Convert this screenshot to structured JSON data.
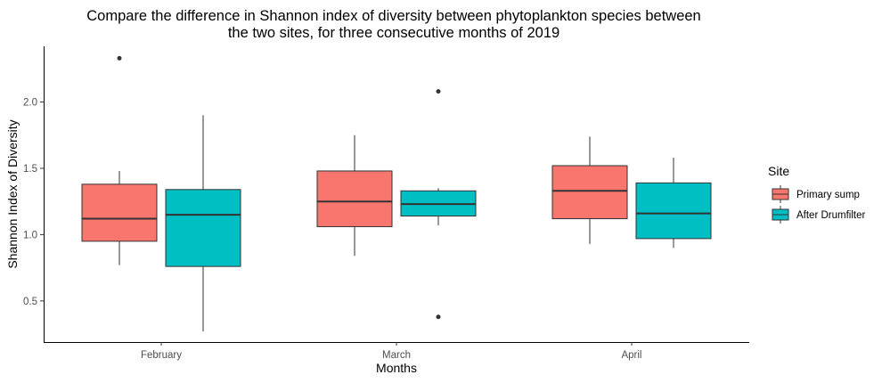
{
  "chart_data": {
    "type": "boxplot",
    "title_lines": [
      "Compare the difference in Shannon index of diversity between phytoplankton species between",
      "the two sites, for three consecutive months of 2019"
    ],
    "xlabel": "Months",
    "ylabel": "Shannon Index of Diversity",
    "categories": [
      "February",
      "March",
      "April"
    ],
    "y_ticks": [
      0.5,
      1.0,
      1.5,
      2.0
    ],
    "y_tick_labels": [
      "0.5",
      "1.0",
      "1.5",
      "2.0"
    ],
    "ylim": [
      0.19,
      2.42
    ],
    "grid": false,
    "legend": {
      "title": "Site",
      "position": "right"
    },
    "series": [
      {
        "name": "Primary sump",
        "color": "#F8766D",
        "boxes": [
          {
            "whisker_low": 0.77,
            "q1": 0.95,
            "median": 1.12,
            "q3": 1.38,
            "whisker_high": 1.48,
            "outliers": [
              2.33
            ]
          },
          {
            "whisker_low": 0.84,
            "q1": 1.06,
            "median": 1.25,
            "q3": 1.48,
            "whisker_high": 1.75,
            "outliers": []
          },
          {
            "whisker_low": 0.93,
            "q1": 1.12,
            "median": 1.33,
            "q3": 1.52,
            "whisker_high": 1.74,
            "outliers": []
          }
        ]
      },
      {
        "name": "After Drumfilter",
        "color": "#00BFC4",
        "boxes": [
          {
            "whisker_low": 0.27,
            "q1": 0.76,
            "median": 1.15,
            "q3": 1.34,
            "whisker_high": 1.9,
            "outliers": []
          },
          {
            "whisker_low": 1.07,
            "q1": 1.14,
            "median": 1.23,
            "q3": 1.33,
            "whisker_high": 1.35,
            "outliers": [
              2.08,
              0.38
            ]
          },
          {
            "whisker_low": 0.9,
            "q1": 0.97,
            "median": 1.16,
            "q3": 1.39,
            "whisker_high": 1.58,
            "outliers": []
          }
        ]
      }
    ]
  }
}
